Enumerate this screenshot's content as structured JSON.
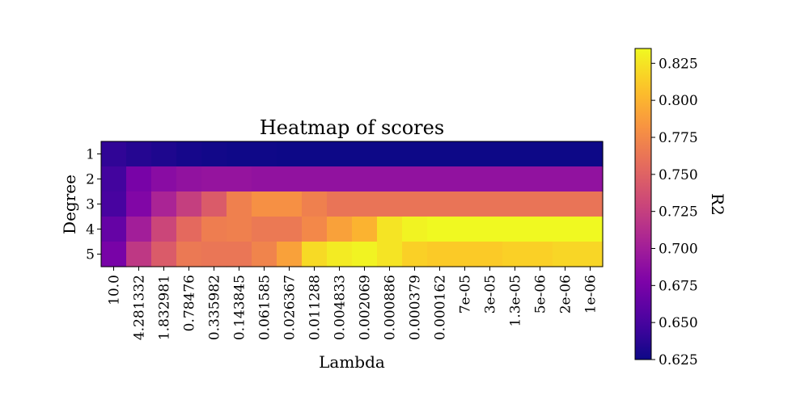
{
  "chart_data": {
    "type": "heatmap",
    "title": "Heatmap of scores",
    "xlabel": "Lambda",
    "ylabel": "Degree",
    "colorbar_label": "R2",
    "colormap": "plasma",
    "clim": [
      0.625,
      0.835
    ],
    "colorbar_ticks": [
      "0.625",
      "0.650",
      "0.675",
      "0.700",
      "0.725",
      "0.750",
      "0.775",
      "0.800",
      "0.825"
    ],
    "x_categories": [
      "10.0",
      "4.281332",
      "1.832981",
      "0.78476",
      "0.335982",
      "0.143845",
      "0.061585",
      "0.026367",
      "0.011288",
      "0.004833",
      "0.002069",
      "0.000886",
      "0.000379",
      "0.000162",
      "7e-05",
      "3e-05",
      "1.3e-05",
      "5e-06",
      "2e-06",
      "1e-06"
    ],
    "y_categories": [
      "1",
      "2",
      "3",
      "4",
      "5"
    ],
    "values": [
      [
        0.64,
        0.635,
        0.632,
        0.629,
        0.627,
        0.626,
        0.626,
        0.625,
        0.625,
        0.625,
        0.625,
        0.625,
        0.625,
        0.625,
        0.625,
        0.625,
        0.625,
        0.625,
        0.625,
        0.625
      ],
      [
        0.648,
        0.675,
        0.685,
        0.69,
        0.692,
        0.692,
        0.69,
        0.69,
        0.69,
        0.69,
        0.69,
        0.69,
        0.69,
        0.69,
        0.69,
        0.69,
        0.69,
        0.69,
        0.69,
        0.69
      ],
      [
        0.65,
        0.68,
        0.705,
        0.725,
        0.745,
        0.77,
        0.78,
        0.78,
        0.77,
        0.762,
        0.762,
        0.762,
        0.762,
        0.762,
        0.762,
        0.762,
        0.762,
        0.762,
        0.762,
        0.762
      ],
      [
        0.665,
        0.7,
        0.73,
        0.755,
        0.768,
        0.77,
        0.765,
        0.765,
        0.775,
        0.79,
        0.8,
        0.825,
        0.832,
        0.835,
        0.835,
        0.835,
        0.835,
        0.835,
        0.835,
        0.835
      ],
      [
        0.675,
        0.72,
        0.745,
        0.765,
        0.763,
        0.763,
        0.772,
        0.79,
        0.82,
        0.828,
        0.832,
        0.825,
        0.815,
        0.812,
        0.812,
        0.812,
        0.815,
        0.815,
        0.818,
        0.818
      ]
    ]
  }
}
